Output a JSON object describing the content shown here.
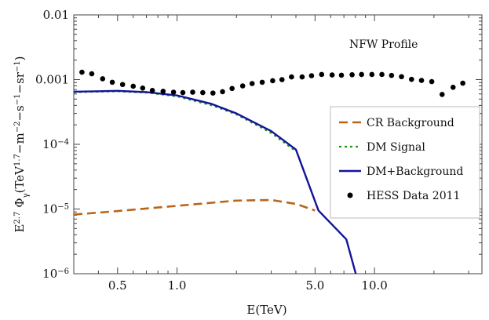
{
  "chart_data": {
    "type": "line",
    "annotation": "NFW Profile",
    "xlabel": "E(TeV)",
    "ylabel": "E^{2.7} Φγ(TeV^{1.7}−m^{-2}−s^{-1}−sr^{-1})",
    "ylabel_parts": {
      "e_base": "E",
      "e_exp": "2.7",
      "phi": "Φ",
      "phi_sub": "γ",
      "open": "(TeV",
      "tev_exp": "1.7",
      "dash_m": "−m",
      "m_exp": "−2",
      "dash_s": "−s",
      "s_exp": "−1",
      "dash_sr": "−sr",
      "sr_exp": "−1",
      "close": ")"
    },
    "xscale": "log",
    "yscale": "log",
    "xlim": [
      0.3,
      35
    ],
    "ylim": [
      1e-06,
      0.01
    ],
    "x_ticks": [
      {
        "value": 0.5,
        "label": "0.5"
      },
      {
        "value": 1.0,
        "label": "1.0"
      },
      {
        "value": 5.0,
        "label": "5.0"
      },
      {
        "value": 10.0,
        "label": "10.0"
      }
    ],
    "y_ticks": [
      {
        "value": 0.01,
        "label": "0.01"
      },
      {
        "value": 0.001,
        "label": "0.001"
      },
      {
        "value": 0.0001,
        "label": "10",
        "exp": "−4"
      },
      {
        "value": 1e-05,
        "label": "10",
        "exp": "−5"
      },
      {
        "value": 1e-06,
        "label": "10",
        "exp": "−6"
      }
    ],
    "legend_position": "right",
    "series": [
      {
        "name": "CR Background",
        "style": "dashed",
        "color": "#b8651b",
        "x": [
          0.3,
          0.5,
          1.0,
          2.0,
          3.0,
          4.0,
          5.0
        ],
        "y": [
          8.2e-06,
          9.3e-06,
          1.12e-05,
          1.35e-05,
          1.38e-05,
          1.2e-05,
          9.5e-06
        ]
      },
      {
        "name": "DM Signal",
        "style": "dotted",
        "color": "#1a9a1a",
        "x": [
          0.3,
          0.5,
          0.7,
          1.0,
          1.5,
          2.0,
          3.0,
          4.0
        ],
        "y": [
          0.00064,
          0.00066,
          0.00063,
          0.00055,
          0.0004,
          0.00029,
          0.00015,
          7.8e-05
        ]
      },
      {
        "name": "DM+Background",
        "style": "solid",
        "color": "#13139a",
        "x": [
          0.3,
          0.5,
          0.7,
          1.0,
          1.5,
          2.0,
          3.0,
          4.0,
          5.2,
          7.2,
          8.2
        ],
        "y": [
          0.00065,
          0.00067,
          0.00064,
          0.00057,
          0.00042,
          0.0003,
          0.00016,
          8.3e-05,
          9.5e-06,
          3.4e-06,
          8e-07
        ]
      },
      {
        "name": "HESS Data 2011",
        "style": "points",
        "color": "#000000",
        "x": [
          0.33,
          0.37,
          0.42,
          0.47,
          0.53,
          0.6,
          0.67,
          0.75,
          0.85,
          0.96,
          1.07,
          1.2,
          1.35,
          1.52,
          1.7,
          1.9,
          2.15,
          2.4,
          2.7,
          3.05,
          3.4,
          3.8,
          4.3,
          4.8,
          5.4,
          6.1,
          6.8,
          7.7,
          8.6,
          9.7,
          10.9,
          12.2,
          13.7,
          15.4,
          17.3,
          19.5,
          22.0,
          25.0,
          28.0
        ],
        "y": [
          0.0013,
          0.00123,
          0.00103,
          0.00091,
          0.00084,
          0.00079,
          0.00074,
          0.00068,
          0.00066,
          0.00064,
          0.00063,
          0.00064,
          0.00063,
          0.00062,
          0.00065,
          0.00073,
          0.0008,
          0.00087,
          0.00091,
          0.00096,
          0.001,
          0.0011,
          0.0011,
          0.00115,
          0.0012,
          0.00118,
          0.00117,
          0.00119,
          0.0012,
          0.0012,
          0.0012,
          0.00116,
          0.00111,
          0.00101,
          0.00097,
          0.00093,
          0.00059,
          0.00076,
          0.00088
        ]
      }
    ]
  }
}
